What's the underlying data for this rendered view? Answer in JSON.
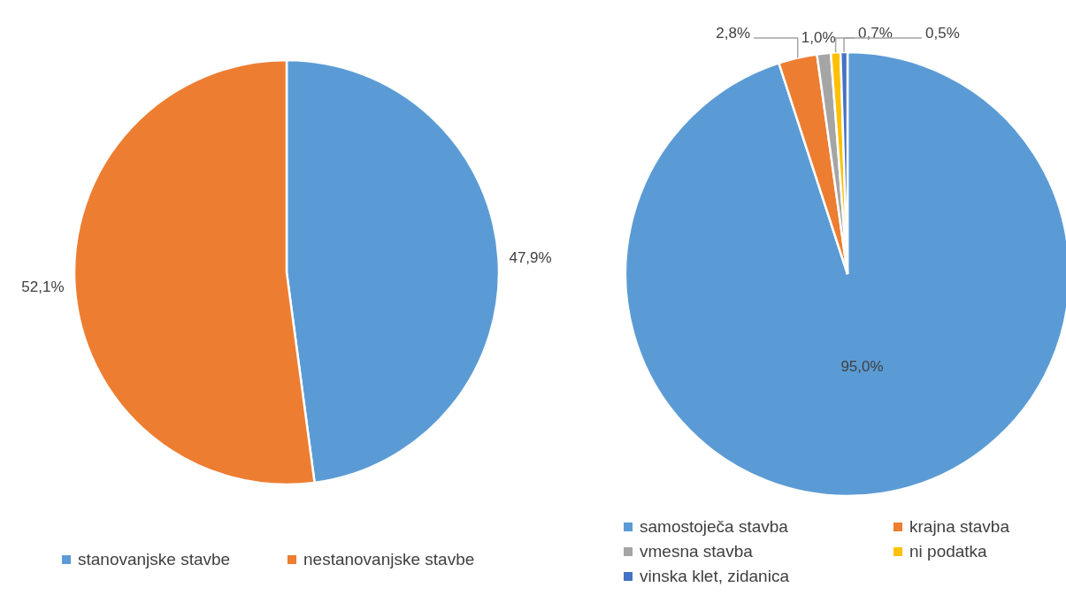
{
  "chart_data": [
    {
      "type": "pie",
      "categories": [
        "stanovanjske stavbe",
        "nestanovanjske stavbe"
      ],
      "values": [
        47.9,
        52.1
      ],
      "colors": [
        "#5b9bd5",
        "#ed7d31"
      ],
      "value_labels": [
        "47,9%",
        "52,1%"
      ],
      "legend": "bottom"
    },
    {
      "type": "pie",
      "categories": [
        "samostoječa stavba",
        "krajna stavba",
        "vmesna stavba",
        "ni podatka",
        "vinska klet, zidanica"
      ],
      "values": [
        95.0,
        2.8,
        1.0,
        0.7,
        0.5
      ],
      "colors": [
        "#5b9bd5",
        "#ed7d31",
        "#a5a5a5",
        "#ffc000",
        "#4472c4"
      ],
      "value_labels": [
        "95,0%",
        "2,8%",
        "1,0%",
        "0,7%",
        "0,5%"
      ],
      "legend": "bottom"
    }
  ]
}
